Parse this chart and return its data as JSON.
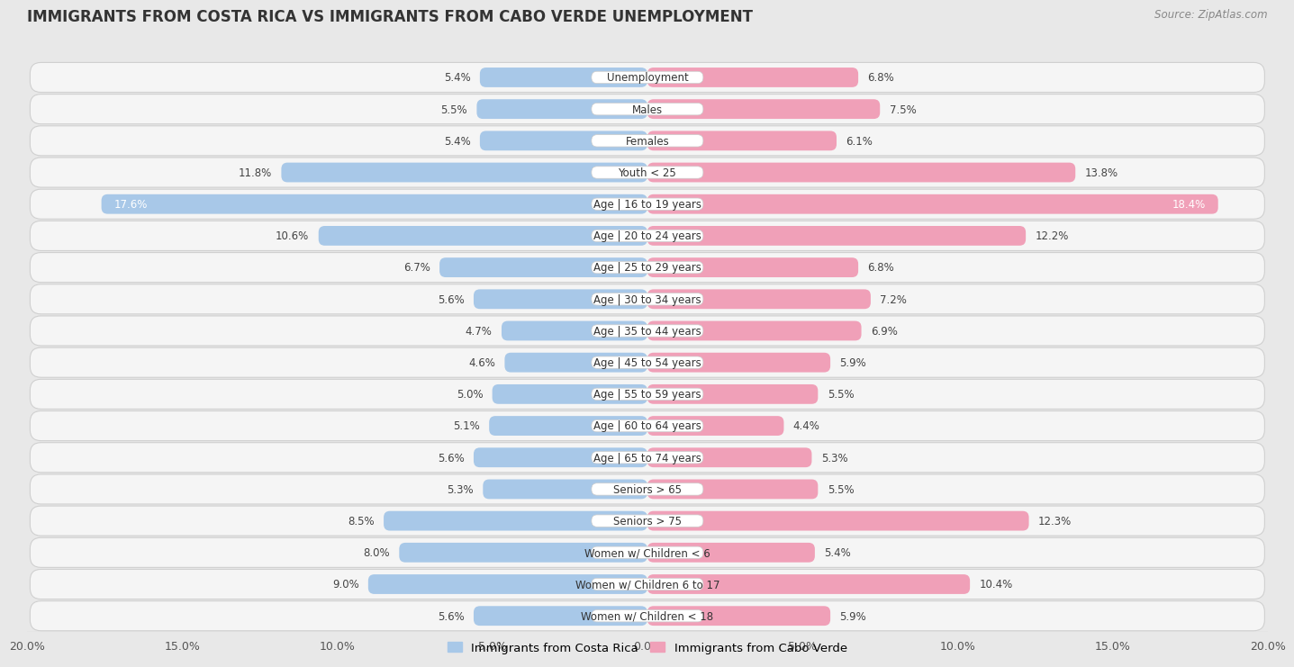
{
  "title": "IMMIGRANTS FROM COSTA RICA VS IMMIGRANTS FROM CABO VERDE UNEMPLOYMENT",
  "source": "Source: ZipAtlas.com",
  "categories": [
    "Unemployment",
    "Males",
    "Females",
    "Youth < 25",
    "Age | 16 to 19 years",
    "Age | 20 to 24 years",
    "Age | 25 to 29 years",
    "Age | 30 to 34 years",
    "Age | 35 to 44 years",
    "Age | 45 to 54 years",
    "Age | 55 to 59 years",
    "Age | 60 to 64 years",
    "Age | 65 to 74 years",
    "Seniors > 65",
    "Seniors > 75",
    "Women w/ Children < 6",
    "Women w/ Children 6 to 17",
    "Women w/ Children < 18"
  ],
  "left_values": [
    5.4,
    5.5,
    5.4,
    11.8,
    17.6,
    10.6,
    6.7,
    5.6,
    4.7,
    4.6,
    5.0,
    5.1,
    5.6,
    5.3,
    8.5,
    8.0,
    9.0,
    5.6
  ],
  "right_values": [
    6.8,
    7.5,
    6.1,
    13.8,
    18.4,
    12.2,
    6.8,
    7.2,
    6.9,
    5.9,
    5.5,
    4.4,
    5.3,
    5.5,
    12.3,
    5.4,
    10.4,
    5.9
  ],
  "left_color": "#a8c8e8",
  "right_color": "#f0a0b8",
  "axis_max": 20.0,
  "background_color": "#e8e8e8",
  "row_bg_color": "#f5f5f5",
  "row_border_color": "#d0d0d0",
  "label_pill_color": "#ffffff",
  "title_fontsize": 12,
  "source_fontsize": 8.5,
  "bar_label_fontsize": 8.5,
  "cat_label_fontsize": 8.5,
  "legend_label_left": "Immigrants from Costa Rica",
  "legend_label_right": "Immigrants from Cabo Verde",
  "tick_labels": [
    "20.0%",
    "15.0%",
    "10.0%",
    "5.0%",
    "0.0%",
    "5.0%",
    "10.0%",
    "15.0%",
    "20.0%"
  ]
}
